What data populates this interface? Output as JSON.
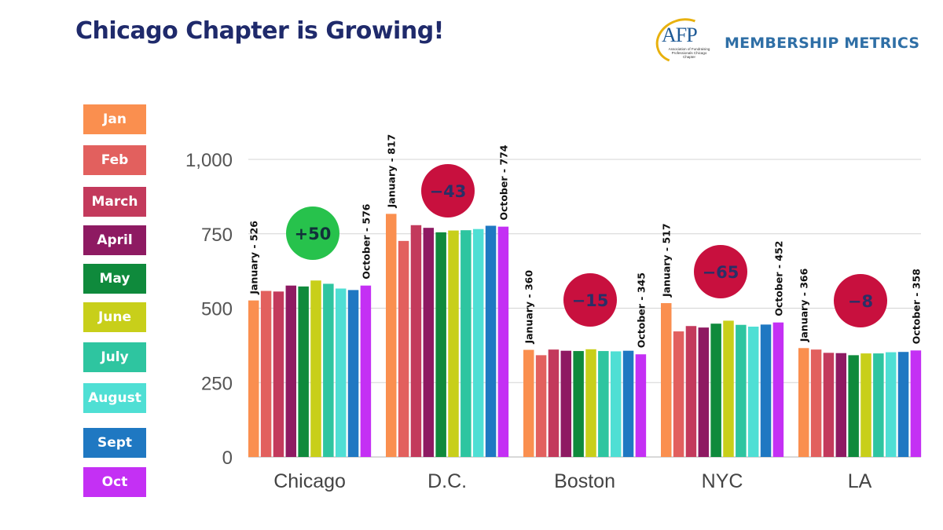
{
  "title": "Chicago Chapter is Growing!",
  "brand": {
    "logo_text": "AFP",
    "logo_tagline": "Association of Fundraising Professionals Chicago Chapter",
    "header_label": "MEMBERSHIP METRICS"
  },
  "chart_data": {
    "type": "bar",
    "title": "Chicago Chapter is Growing!",
    "xlabel": "",
    "ylabel": "",
    "ylim": [
      0,
      1000
    ],
    "yticks": [
      0,
      250,
      500,
      750,
      1000
    ],
    "ytick_labels": [
      "0",
      "250",
      "500",
      "750",
      "1,000"
    ],
    "grid": true,
    "legend_position": "left",
    "categories": [
      "Chicago",
      "D.C.",
      "Boston",
      "NYC",
      "LA"
    ],
    "series": [
      {
        "name": "Jan",
        "color": "#fa8f4f",
        "values": [
          526,
          817,
          360,
          517,
          366
        ]
      },
      {
        "name": "Feb",
        "color": "#e2605e",
        "values": [
          558,
          726,
          342,
          422,
          361
        ]
      },
      {
        "name": "March",
        "color": "#c33a5c",
        "values": [
          556,
          779,
          361,
          440,
          350
        ]
      },
      {
        "name": "April",
        "color": "#8e1a62",
        "values": [
          576,
          770,
          357,
          435,
          349
        ]
      },
      {
        "name": "May",
        "color": "#0f8a3c",
        "values": [
          573,
          755,
          356,
          448,
          342
        ]
      },
      {
        "name": "June",
        "color": "#c8cf1a",
        "values": [
          593,
          761,
          362,
          458,
          348
        ]
      },
      {
        "name": "July",
        "color": "#2ec5a0",
        "values": [
          582,
          762,
          356,
          444,
          348
        ]
      },
      {
        "name": "August",
        "color": "#4fdfd4",
        "values": [
          566,
          766,
          355,
          438,
          352
        ]
      },
      {
        "name": "Sept",
        "color": "#1f78c2",
        "values": [
          561,
          777,
          357,
          445,
          353
        ]
      },
      {
        "name": "Oct",
        "color": "#c430f4",
        "values": [
          576,
          774,
          345,
          452,
          358
        ]
      }
    ],
    "annotations": {
      "start_labels": [
        "January - 526",
        "January - 817",
        "January - 360",
        "January - 517",
        "January - 366"
      ],
      "end_labels": [
        "October - 576",
        "October - 774",
        "October - 345",
        "October - 452",
        "October - 358"
      ],
      "badges": [
        {
          "text": "+50",
          "color": "#27c24c",
          "value": 50
        },
        {
          "text": "−43",
          "color": "#c8103e",
          "value": -43
        },
        {
          "text": "−15",
          "color": "#c8103e",
          "value": -15
        },
        {
          "text": "−65",
          "color": "#c8103e",
          "value": -65
        },
        {
          "text": "−8",
          "color": "#c8103e",
          "value": -8
        }
      ]
    }
  }
}
